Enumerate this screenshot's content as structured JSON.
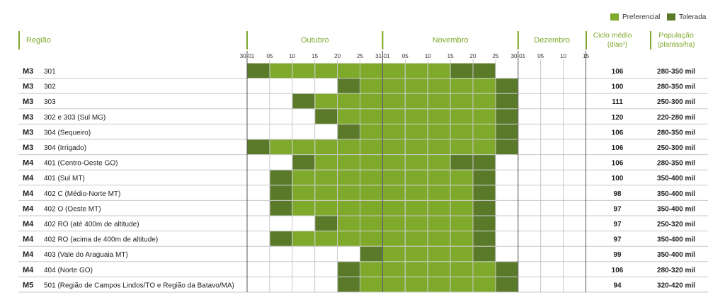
{
  "legend": {
    "preferred": {
      "label": "Preferencial",
      "color": "#7ea92b"
    },
    "tolerated": {
      "label": "Tolerada",
      "color": "#5a7a2a"
    }
  },
  "headers": {
    "region": "Região",
    "cycle_line1": "Ciclo médio",
    "cycle_line2": "(dias¹)",
    "population_line1": "População",
    "population_line2": "(plantas/ha)"
  },
  "months": [
    "Outubro",
    "Novembro",
    "Dezembro"
  ],
  "day_ticks": [
    "30-01",
    "05",
    "10",
    "15",
    "20",
    "25",
    "31-01",
    "05",
    "10",
    "15",
    "20",
    "25",
    "30-01",
    "05",
    "10",
    "15"
  ],
  "chart_data": {
    "type": "table",
    "status_codes": {
      "0": "none",
      "1": "Preferencial",
      "2": "Tolerada"
    },
    "periods": [
      "30-01 a 05 Out",
      "05 a 10 Out",
      "10 a 15 Out",
      "15 a 20 Out",
      "20 a 25 Out",
      "25 a 31 Out",
      "31-01 a 05 Nov",
      "05 a 10 Nov",
      "10 a 15 Nov",
      "15 a 20 Nov",
      "20 a 25 Nov",
      "25 a 30 Nov",
      "30-01 a 05 Dez",
      "05 a 10 Dez",
      "10 a 15 Dez"
    ],
    "rows": [
      {
        "macro": "M3",
        "region": "301",
        "status": [
          2,
          1,
          1,
          1,
          1,
          1,
          1,
          1,
          1,
          2,
          2,
          0,
          0,
          0,
          0
        ],
        "cycle": "106",
        "population": "280-350 mil"
      },
      {
        "macro": "M3",
        "region": "302",
        "status": [
          0,
          0,
          0,
          0,
          2,
          1,
          1,
          1,
          1,
          1,
          1,
          2,
          0,
          0,
          0
        ],
        "cycle": "100",
        "population": "280-350 mil"
      },
      {
        "macro": "M3",
        "region": "303",
        "status": [
          0,
          0,
          2,
          1,
          1,
          1,
          1,
          1,
          1,
          1,
          1,
          2,
          0,
          0,
          0
        ],
        "cycle": "111",
        "population": "250-300 mil"
      },
      {
        "macro": "M3",
        "region": "302 e 303 (Sul MG)",
        "status": [
          0,
          0,
          0,
          2,
          1,
          1,
          1,
          1,
          1,
          1,
          1,
          2,
          0,
          0,
          0
        ],
        "cycle": "120",
        "population": "220-280 mil"
      },
      {
        "macro": "M3",
        "region": "304 (Sequeiro)",
        "status": [
          0,
          0,
          0,
          0,
          2,
          1,
          1,
          1,
          1,
          1,
          1,
          2,
          0,
          0,
          0
        ],
        "cycle": "106",
        "population": "280-350 mil"
      },
      {
        "macro": "M3",
        "region": "304 (Irrigado)",
        "status": [
          2,
          1,
          1,
          1,
          1,
          1,
          1,
          1,
          1,
          1,
          1,
          2,
          0,
          0,
          0
        ],
        "cycle": "106",
        "population": "250-300 mil"
      },
      {
        "macro": "M4",
        "region": "401 (Centro-Oeste GO)",
        "status": [
          0,
          0,
          2,
          1,
          1,
          1,
          1,
          1,
          1,
          2,
          2,
          0,
          0,
          0,
          0
        ],
        "cycle": "106",
        "population": "280-350 mil"
      },
      {
        "macro": "M4",
        "region": "401 (Sul MT)",
        "status": [
          0,
          2,
          1,
          1,
          1,
          1,
          1,
          1,
          1,
          1,
          2,
          0,
          0,
          0,
          0
        ],
        "cycle": "100",
        "population": "350-400 mil"
      },
      {
        "macro": "M4",
        "region": "402 C (Médio-Norte MT)",
        "status": [
          0,
          2,
          1,
          1,
          1,
          1,
          1,
          1,
          1,
          1,
          2,
          0,
          0,
          0,
          0
        ],
        "cycle": "98",
        "population": "350-400 mil"
      },
      {
        "macro": "M4",
        "region": "402 O (Oeste MT)",
        "status": [
          0,
          2,
          1,
          1,
          1,
          1,
          1,
          1,
          1,
          1,
          2,
          0,
          0,
          0,
          0
        ],
        "cycle": "97",
        "population": "350-400 mil"
      },
      {
        "macro": "M4",
        "region": "402 RO (até 400m de altitude)",
        "status": [
          0,
          0,
          0,
          2,
          1,
          1,
          1,
          1,
          1,
          1,
          2,
          0,
          0,
          0,
          0
        ],
        "cycle": "97",
        "population": "250-320 mil"
      },
      {
        "macro": "M4",
        "region": "402 RO (acima de 400m de altitude)",
        "status": [
          0,
          2,
          1,
          1,
          1,
          1,
          1,
          1,
          1,
          1,
          2,
          0,
          0,
          0,
          0
        ],
        "cycle": "97",
        "population": "350-400 mil"
      },
      {
        "macro": "M4",
        "region": "403 (Vale do Araguaia MT)",
        "status": [
          0,
          0,
          0,
          0,
          0,
          2,
          1,
          1,
          1,
          1,
          2,
          0,
          0,
          0,
          0
        ],
        "cycle": "99",
        "population": "350-400 mil"
      },
      {
        "macro": "M4",
        "region": "404 (Norte GO)",
        "status": [
          0,
          0,
          0,
          0,
          2,
          1,
          1,
          1,
          1,
          1,
          1,
          2,
          0,
          0,
          0
        ],
        "cycle": "106",
        "population": "280-320 mil"
      },
      {
        "macro": "M5",
        "region": "501 (Região de Campos Lindos/TO e Região da Batavo/MA)",
        "status": [
          0,
          0,
          0,
          0,
          2,
          1,
          1,
          1,
          1,
          1,
          1,
          2,
          0,
          0,
          0
        ],
        "cycle": "94",
        "population": "320-420 mil"
      }
    ]
  }
}
